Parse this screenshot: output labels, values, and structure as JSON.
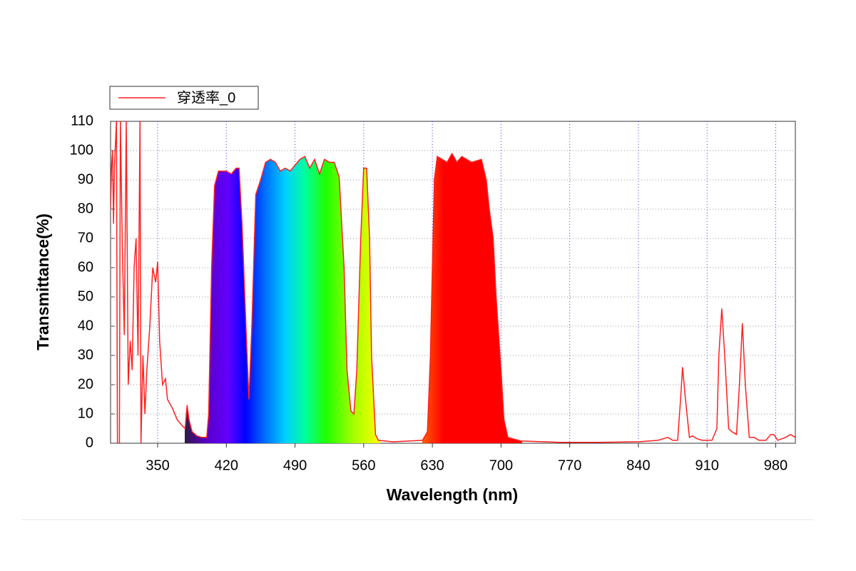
{
  "chart_data": {
    "type": "line",
    "xlabel": "Wavelength (nm)",
    "ylabel": "Transmittance(%)",
    "x": [
      302,
      303,
      304,
      305,
      306,
      308,
      309,
      311,
      312,
      314,
      316,
      318,
      320,
      322,
      324,
      326,
      328,
      330,
      332,
      333,
      335,
      337,
      339,
      342,
      345,
      348,
      350,
      352,
      355,
      358,
      360,
      365,
      370,
      375,
      378,
      380,
      382,
      385,
      390,
      395,
      400,
      402,
      405,
      408,
      412,
      420,
      425,
      430,
      433,
      436,
      440,
      443,
      446,
      450,
      455,
      460,
      465,
      470,
      475,
      480,
      485,
      490,
      495,
      500,
      505,
      510,
      515,
      520,
      525,
      530,
      535,
      540,
      543,
      547,
      550,
      553,
      557,
      560,
      563,
      566,
      568,
      572,
      575,
      590,
      620,
      625,
      628,
      632,
      635,
      645,
      650,
      655,
      660,
      670,
      680,
      685,
      688,
      692,
      695,
      700,
      703,
      707,
      720,
      760,
      800,
      840,
      860,
      870,
      875,
      880,
      883,
      885,
      888,
      892,
      895,
      900,
      905,
      915,
      920,
      922,
      925,
      928,
      932,
      935,
      940,
      943,
      946,
      949,
      953,
      958,
      963,
      970,
      975,
      978,
      982,
      990,
      995,
      1000
    ],
    "series": [
      {
        "name": "穿透率_0",
        "color": "#ff2020",
        "values": [
          80,
          95,
          100,
          75,
          95,
          110,
          0,
          0,
          110,
          67,
          37,
          110,
          20,
          35,
          25,
          60,
          70,
          30,
          110,
          0,
          30,
          10,
          25,
          40,
          60,
          55,
          62,
          35,
          20,
          22,
          15,
          12,
          8,
          6,
          5,
          13,
          8,
          4,
          2.5,
          2,
          2,
          10,
          60,
          88,
          93,
          93,
          92,
          94,
          94,
          75,
          40,
          15,
          40,
          85,
          90,
          96,
          97,
          96,
          93,
          94,
          93,
          95,
          97,
          98,
          94,
          97,
          92,
          97,
          96,
          96,
          91,
          60,
          25,
          11,
          10,
          25,
          70,
          94,
          94,
          70,
          30,
          3,
          1,
          0.5,
          1,
          4,
          30,
          90,
          98,
          96,
          99,
          96,
          98,
          96,
          97,
          90,
          80,
          70,
          50,
          25,
          8,
          2,
          0.8,
          0.3,
          0.3,
          0.5,
          1,
          2,
          1,
          1,
          15,
          26,
          15,
          2,
          2.5,
          1.5,
          1,
          1,
          5,
          30,
          46,
          30,
          5,
          4,
          3,
          20,
          41,
          20,
          2,
          2,
          1,
          1,
          3,
          3,
          1,
          2,
          3,
          2
        ]
      }
    ],
    "xlim": [
      302,
      1000
    ],
    "ylim": [
      0,
      110
    ],
    "xticks": [
      350,
      420,
      490,
      560,
      630,
      700,
      770,
      840,
      910,
      980
    ],
    "yticks": [
      0,
      10,
      20,
      30,
      40,
      50,
      60,
      70,
      80,
      90,
      100,
      110
    ],
    "grid": true,
    "legend": "top-left"
  }
}
